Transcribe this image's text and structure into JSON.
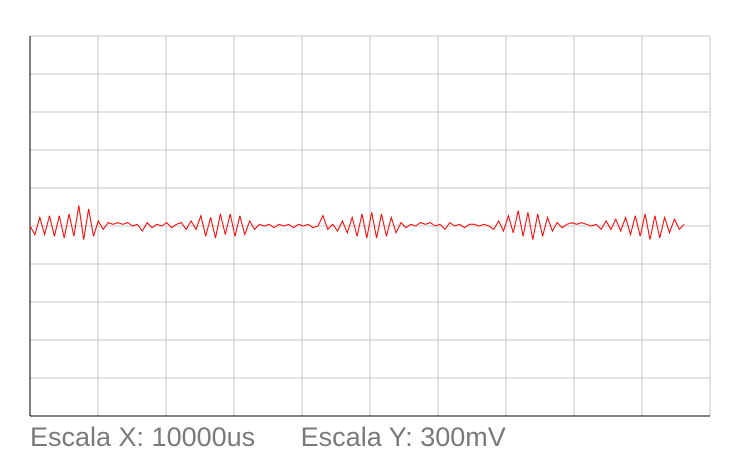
{
  "chart_data": {
    "type": "line",
    "x_divisions": 10,
    "y_divisions": 10,
    "grid": true,
    "grid_color": "#c8c8c8",
    "trace_color": "#ff0000",
    "axis_color": "#000000",
    "x_range": [
      0,
      10
    ],
    "y_range": [
      -5,
      5
    ],
    "series": [
      {
        "values": [
          0.0,
          -0.25,
          0.25,
          -0.25,
          0.3,
          -0.3,
          0.3,
          -0.35,
          0.35,
          -0.3,
          0.6,
          -0.4,
          0.5,
          -0.3,
          0.15,
          -0.1,
          0.1,
          0.05,
          0.1,
          0.05,
          0.1,
          0.0,
          0.05,
          -0.15,
          0.1,
          -0.05,
          0.05,
          0.0,
          0.1,
          -0.05,
          0.05,
          0.1,
          -0.1,
          0.15,
          -0.1,
          0.3,
          -0.3,
          0.25,
          -0.35,
          0.35,
          -0.25,
          0.35,
          -0.3,
          0.3,
          -0.25,
          0.15,
          -0.1,
          0.05,
          0.0,
          0.05,
          -0.05,
          0.05,
          0.0,
          0.05,
          -0.05,
          0.05,
          0.0,
          0.05,
          -0.05,
          0.0,
          0.3,
          -0.1,
          0.05,
          -0.15,
          0.15,
          -0.2,
          0.25,
          -0.3,
          0.35,
          -0.35,
          0.4,
          -0.35,
          0.35,
          -0.3,
          0.25,
          -0.2,
          0.1,
          -0.05,
          0.05,
          0.0,
          0.1,
          0.05,
          0.1,
          0.0,
          0.05,
          -0.1,
          0.1,
          0.0,
          0.05,
          -0.05,
          0.05,
          0.05,
          0.0,
          0.05,
          0.0,
          -0.1,
          0.15,
          -0.15,
          0.3,
          -0.2,
          0.45,
          -0.3,
          0.4,
          -0.4,
          0.35,
          -0.3,
          0.25,
          -0.15,
          0.1,
          -0.05,
          0.05,
          0.1,
          0.05,
          0.1,
          0.05,
          0.0,
          0.05,
          -0.1,
          0.15,
          -0.1,
          0.2,
          -0.15,
          0.25,
          -0.25,
          0.3,
          -0.3,
          0.35,
          -0.4,
          0.3,
          -0.35,
          0.25,
          -0.2,
          0.2,
          -0.1,
          0.05
        ]
      }
    ]
  },
  "labels": {
    "scale_x": "Escala X: 10000us",
    "scale_y": "Escala Y: 300mV"
  }
}
